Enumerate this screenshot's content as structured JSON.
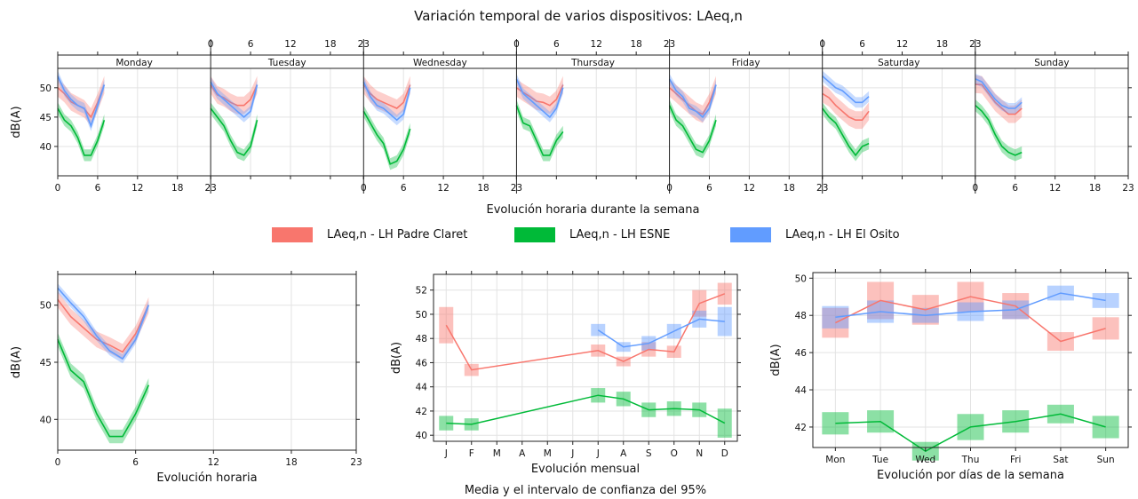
{
  "title": "Variación temporal de varios dispositivos: LAeq,n",
  "colors": {
    "Padre Claret": "#f8766d",
    "ESNE": "#00ba38",
    "El Osito": "#619cff"
  },
  "legend": [
    {
      "label": "LAeq,n  - LH Padre Claret",
      "series": "Padre Claret"
    },
    {
      "label": "LAeq,n  - LH ESNE",
      "series": "ESNE"
    },
    {
      "label": "LAeq,n  - LH El Osito",
      "series": "El Osito"
    }
  ],
  "chart_data": [
    {
      "type": "line",
      "panel": "weekly",
      "xlabel": "Evolución horaria durante la semana",
      "ylabel": "dB(A)",
      "ylim": [
        35,
        53.3
      ],
      "yticks": [
        40,
        45,
        50
      ],
      "xticks_bottom": [
        "0",
        "6",
        "12",
        "18",
        "23"
      ],
      "xticks_top": [
        "0",
        "6",
        "12",
        "18",
        "23"
      ],
      "hours": [
        0,
        1,
        2,
        3,
        4,
        5,
        6,
        7
      ],
      "days": [
        "Monday",
        "Tuesday",
        "Wednesday",
        "Thursday",
        "Friday",
        "Saturday",
        "Sunday"
      ],
      "series": [
        {
          "name": "Padre Claret",
          "ci": 1.5,
          "values": [
            [
              50.0,
              49.0,
              47.6,
              47.0,
              46.4,
              45.0,
              47.5,
              50.5
            ],
            [
              50.5,
              48.8,
              48.3,
              47.5,
              47.0,
              47.0,
              48.0,
              50.5
            ],
            [
              50.5,
              49.0,
              48.0,
              47.5,
              47.0,
              46.5,
              47.5,
              50.5
            ],
            [
              50.0,
              49.2,
              48.5,
              47.7,
              47.5,
              47.0,
              48.0,
              50.5
            ],
            [
              50.0,
              49.0,
              48.0,
              47.0,
              46.0,
              45.5,
              47.5,
              50.5
            ],
            [
              49.0,
              48.3,
              47.0,
              46.0,
              45.0,
              44.5,
              44.5,
              46.0
            ],
            [
              50.6,
              50.5,
              49.0,
              47.5,
              46.5,
              45.5,
              45.5,
              46.5
            ]
          ]
        },
        {
          "name": "ESNE",
          "ci": 1.0,
          "values": [
            [
              46.5,
              44.5,
              43.5,
              41.5,
              38.5,
              38.5,
              41.0,
              44.5
            ],
            [
              46.5,
              45.0,
              43.5,
              41.0,
              39.0,
              38.5,
              40.0,
              44.5
            ],
            [
              46.0,
              44.0,
              42.0,
              40.5,
              37.0,
              37.5,
              39.5,
              43.0
            ],
            [
              47.0,
              44.0,
              43.5,
              41.0,
              38.5,
              38.5,
              41.0,
              42.5
            ],
            [
              47.0,
              44.5,
              43.5,
              41.5,
              39.5,
              39.0,
              41.0,
              44.5
            ],
            [
              46.5,
              45.0,
              44.0,
              42.0,
              40.0,
              38.5,
              40.0,
              40.5
            ],
            [
              47.0,
              46.0,
              44.5,
              42.0,
              40.0,
              39.0,
              38.5,
              39.0
            ]
          ]
        },
        {
          "name": "El Osito",
          "ci": 0.9,
          "values": [
            [
              52.0,
              49.5,
              48.0,
              47.0,
              46.5,
              43.5,
              47.0,
              50.5
            ],
            [
              51.0,
              49.0,
              48.0,
              47.0,
              46.0,
              45.0,
              46.0,
              50.5
            ],
            [
              51.0,
              48.5,
              47.0,
              46.5,
              45.5,
              44.5,
              45.5,
              50.0
            ],
            [
              51.5,
              49.0,
              48.0,
              47.0,
              46.0,
              45.0,
              46.5,
              50.0
            ],
            [
              51.5,
              49.5,
              48.5,
              46.5,
              46.0,
              45.0,
              46.5,
              50.5
            ],
            [
              52.0,
              51.0,
              50.0,
              49.5,
              48.5,
              47.5,
              47.5,
              48.5
            ],
            [
              51.5,
              51.0,
              49.5,
              48.0,
              47.0,
              46.5,
              46.5,
              47.5
            ]
          ]
        }
      ]
    },
    {
      "type": "line",
      "panel": "hourly",
      "xlabel": "Evolución horaria",
      "ylabel": "dB(A)",
      "ylim": [
        37.3,
        52.7
      ],
      "yticks": [
        40,
        45,
        50
      ],
      "xlim": [
        0,
        23
      ],
      "xticks": [
        0,
        6,
        12,
        18,
        23
      ],
      "x": [
        0,
        1,
        2,
        3,
        4,
        5,
        6,
        7
      ],
      "series": [
        {
          "name": "Padre Claret",
          "ci": 0.7,
          "values": [
            50.5,
            49.0,
            48.0,
            47.0,
            46.5,
            45.9,
            47.5,
            50.0
          ]
        },
        {
          "name": "ESNE",
          "ci": 0.6,
          "values": [
            47.0,
            44.3,
            43.3,
            40.5,
            38.5,
            38.5,
            40.5,
            43.0
          ]
        },
        {
          "name": "El Osito",
          "ci": 0.4,
          "values": [
            51.5,
            50.2,
            49.0,
            47.3,
            46.0,
            45.3,
            47.0,
            50.0
          ]
        }
      ]
    },
    {
      "type": "line",
      "panel": "monthly",
      "xlabel": "Evolución mensual",
      "caption": "Media y el intervalo de confianza del 95%",
      "ylabel": "dB(A)",
      "ylim": [
        39.5,
        53.3
      ],
      "yticks": [
        40,
        42,
        44,
        46,
        48,
        50,
        52
      ],
      "categories": [
        "J",
        "F",
        "M",
        "A",
        "M",
        "J",
        "J",
        "A",
        "S",
        "O",
        "N",
        "D"
      ],
      "series": [
        {
          "name": "Padre Claret",
          "values": [
            49.1,
            45.4,
            null,
            null,
            null,
            null,
            47.0,
            46.1,
            47.1,
            46.9,
            50.9,
            51.7
          ],
          "ci": [
            1.5,
            0.5,
            null,
            null,
            null,
            null,
            0.5,
            0.4,
            0.6,
            0.5,
            1.1,
            0.9
          ]
        },
        {
          "name": "ESNE",
          "values": [
            41.0,
            40.9,
            null,
            null,
            null,
            null,
            43.3,
            43.0,
            42.1,
            42.2,
            42.1,
            41.0
          ],
          "ci": [
            0.6,
            0.5,
            null,
            null,
            null,
            null,
            0.6,
            0.6,
            0.6,
            0.6,
            0.6,
            1.2
          ]
        },
        {
          "name": "El Osito",
          "values": [
            null,
            null,
            null,
            null,
            null,
            null,
            48.7,
            47.3,
            47.6,
            48.6,
            49.6,
            49.4
          ],
          "ci": [
            null,
            null,
            null,
            null,
            null,
            null,
            0.5,
            0.4,
            0.6,
            0.6,
            0.7,
            1.2
          ]
        }
      ]
    },
    {
      "type": "line",
      "panel": "daily",
      "xlabel": "Evolución por días de la semana",
      "ylabel": "dB(A)",
      "ylim": [
        40.9,
        50.3
      ],
      "yticks": [
        42,
        44,
        46,
        48,
        50
      ],
      "categories": [
        "Mon",
        "Tue",
        "Wed",
        "Thu",
        "Fri",
        "Sat",
        "Sun"
      ],
      "series": [
        {
          "name": "Padre Claret",
          "values": [
            47.6,
            48.8,
            48.3,
            49.0,
            48.5,
            46.6,
            47.3
          ],
          "ci": [
            0.8,
            1.0,
            0.8,
            0.8,
            0.7,
            0.5,
            0.6
          ]
        },
        {
          "name": "ESNE",
          "values": [
            42.2,
            42.3,
            40.7,
            42.0,
            42.3,
            42.7,
            42.0
          ],
          "ci": [
            0.6,
            0.6,
            0.5,
            0.7,
            0.6,
            0.5,
            0.6
          ]
        },
        {
          "name": "El Osito",
          "values": [
            47.9,
            48.2,
            48.0,
            48.2,
            48.3,
            49.2,
            48.8
          ],
          "ci": [
            0.6,
            0.6,
            0.4,
            0.5,
            0.5,
            0.4,
            0.4
          ]
        }
      ]
    }
  ]
}
